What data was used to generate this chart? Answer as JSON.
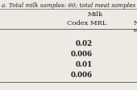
{
  "footnote": "a. Total milk samples: 60; total meat samples",
  "col_header_milk": "Milk",
  "col_header_codex": "Codex MRL",
  "col_header_n": "N",
  "col_header_ex": "ex",
  "values": [
    "0.02",
    "0.006",
    "0.01",
    "0.006"
  ],
  "bg_color": "#edeae3",
  "text_color": "#1a1a1a",
  "line_color": "#666666",
  "font_size_footnote": 5.2,
  "font_size_header": 6.0,
  "font_size_data": 6.2
}
